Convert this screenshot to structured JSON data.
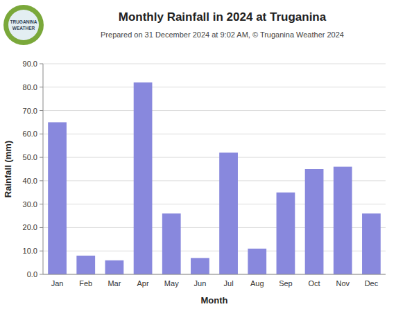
{
  "chart_data": {
    "type": "bar",
    "title": "Monthly Rainfall in 2024 at Truganina",
    "subtitle": "Prepared on 31 December 2024 at 9:02 AM, © Truganina Weather 2024",
    "xlabel": "Month",
    "ylabel": "Rainfall (mm)",
    "annotations": [
      "TRUGANINA",
      "WEATHER"
    ],
    "categories": [
      "Jan",
      "Feb",
      "Mar",
      "Apr",
      "May",
      "Jun",
      "Jul",
      "Aug",
      "Sep",
      "Oct",
      "Nov",
      "Dec"
    ],
    "values": [
      65.0,
      8.0,
      6.0,
      82.0,
      26.0,
      7.0,
      52.0,
      11.0,
      35.0,
      45.0,
      46.0,
      26.0
    ],
    "color": "#8888dd",
    "ylim": [
      0.0,
      90.0
    ],
    "yticks": [
      {
        "value": 0.0,
        "label": "0.0"
      },
      {
        "value": 10.0,
        "label": "10.0"
      },
      {
        "value": 20.0,
        "label": "20.0"
      },
      {
        "value": 30.0,
        "label": "30.0"
      },
      {
        "value": 40.0,
        "label": "40.0"
      },
      {
        "value": 50.0,
        "label": "50.0"
      },
      {
        "value": 60.0,
        "label": "60.0"
      },
      {
        "value": 70.0,
        "label": "70.0"
      },
      {
        "value": 80.0,
        "label": "80.0"
      },
      {
        "value": 90.0,
        "label": "90.0"
      }
    ],
    "grid": true
  }
}
